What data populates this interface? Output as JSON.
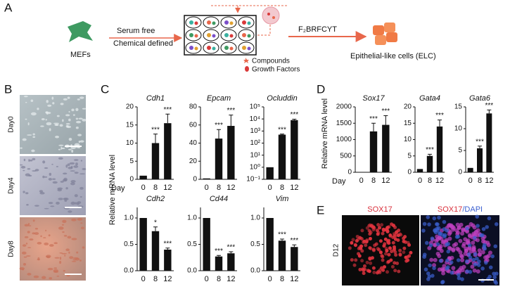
{
  "panel_a": {
    "label": "A",
    "source": "MEFs",
    "step1": [
      "Serum free",
      "Chemical defined"
    ],
    "step2": "F₂BRFCYT",
    "target": "Epithelial-like cells (ELC)",
    "legend": [
      "Compounds",
      "Growth Factors"
    ]
  },
  "panel_b": {
    "label": "B",
    "rows": [
      "Day0",
      "Day4",
      "Day8"
    ]
  },
  "panel_c": {
    "label": "C",
    "y_label": "Relative mRNA level",
    "day_label": "Day",
    "charts": [
      {
        "type": "bar",
        "title": "Cdh1",
        "categories": [
          "0",
          "8",
          "12"
        ],
        "values": [
          1,
          10,
          15.5
        ],
        "errors": [
          0,
          2.5,
          2.5
        ],
        "sig_labels": [
          null,
          "***",
          "***"
        ],
        "ylim": [
          0,
          20
        ],
        "yticks": [
          0,
          5,
          10,
          15,
          20
        ]
      },
      {
        "type": "bar",
        "title": "Epcam",
        "categories": [
          "0",
          "8",
          "12"
        ],
        "values": [
          1,
          45,
          59
        ],
        "errors": [
          0,
          10,
          12
        ],
        "sig_labels": [
          null,
          "***",
          "***"
        ],
        "ylim": [
          0,
          80
        ],
        "yticks": [
          0,
          20,
          40,
          60,
          80
        ]
      },
      {
        "type": "bar",
        "title": "Ocluddin",
        "log_scale": true,
        "categories": [
          "0",
          "8",
          "12"
        ],
        "values": [
          1,
          500,
          8000
        ],
        "errors": [
          0,
          60,
          1500
        ],
        "sig_labels": [
          null,
          "***",
          "***"
        ],
        "ylim": [
          0.1,
          100000
        ],
        "yticks": [
          {
            "value": 0.1,
            "label": "10⁻¹"
          },
          {
            "value": 1,
            "label": "10⁰"
          },
          {
            "value": 10,
            "label": "10¹"
          },
          {
            "value": 100,
            "label": "10²"
          },
          {
            "value": 1000,
            "label": "10³"
          },
          {
            "value": 10000,
            "label": "10⁴"
          },
          {
            "value": 100000,
            "label": "10⁵"
          }
        ]
      },
      {
        "type": "bar",
        "title": "Cdh2",
        "categories": [
          "0",
          "8",
          "12"
        ],
        "values": [
          1,
          0.75,
          0.4
        ],
        "errors": [
          0,
          0.08,
          0.03
        ],
        "sig_labels": [
          null,
          "*",
          "***"
        ],
        "ylim": [
          0,
          1.2
        ],
        "yticks": [
          {
            "value": 0,
            "label": "0.0"
          },
          {
            "value": 0.5,
            "label": "0.5"
          },
          {
            "value": 1,
            "label": "1.0"
          }
        ]
      },
      {
        "type": "bar",
        "title": "Cd44",
        "categories": [
          "0",
          "8",
          "12"
        ],
        "values": [
          1,
          0.27,
          0.33
        ],
        "errors": [
          0,
          0.02,
          0.03
        ],
        "sig_labels": [
          null,
          "***",
          "***"
        ],
        "ylim": [
          0,
          1.2
        ],
        "yticks": [
          {
            "value": 0,
            "label": "0.0"
          },
          {
            "value": 0.5,
            "label": "0.5"
          },
          {
            "value": 1,
            "label": "1.0"
          }
        ]
      },
      {
        "type": "bar",
        "title": "Vim",
        "categories": [
          "0",
          "8",
          "12"
        ],
        "values": [
          1,
          0.57,
          0.45
        ],
        "errors": [
          0,
          0.03,
          0.04
        ],
        "sig_labels": [
          null,
          "***",
          "***"
        ],
        "ylim": [
          0,
          1.2
        ],
        "yticks": [
          {
            "value": 0,
            "label": "0.0"
          },
          {
            "value": 0.5,
            "label": "0.5"
          },
          {
            "value": 1,
            "label": "1.0"
          }
        ]
      }
    ]
  },
  "panel_d": {
    "label": "D",
    "y_label": "Relative mRNA level",
    "day_label": "Day",
    "charts": [
      {
        "type": "bar",
        "title": "Sox17",
        "categories": [
          "0",
          "8",
          "12"
        ],
        "values": [
          1,
          1250,
          1450
        ],
        "errors": [
          0,
          250,
          280
        ],
        "sig_labels": [
          null,
          "***",
          "***"
        ],
        "ylim": [
          0,
          2000
        ],
        "yticks": [
          0,
          500,
          1000,
          1500,
          2000
        ]
      },
      {
        "type": "bar",
        "title": "Gata4",
        "categories": [
          "0",
          "8",
          "12"
        ],
        "values": [
          1,
          5,
          14
        ],
        "errors": [
          0,
          0.5,
          2
        ],
        "sig_labels": [
          null,
          "***",
          "***"
        ],
        "ylim": [
          0,
          20
        ],
        "yticks": [
          0,
          5,
          10,
          15,
          20
        ]
      },
      {
        "type": "bar",
        "title": "Gata6",
        "categories": [
          "0",
          "8",
          "12"
        ],
        "values": [
          1,
          5.5,
          13.5
        ],
        "errors": [
          0,
          0.5,
          0.8
        ],
        "sig_labels": [
          null,
          "***",
          "***"
        ],
        "ylim": [
          0,
          15
        ],
        "yticks": [
          0,
          5,
          10,
          15
        ]
      }
    ]
  },
  "panel_e": {
    "label": "E",
    "title_left": "SOX17",
    "title_right": [
      "SOX17",
      "/DAPI"
    ],
    "row": "D12"
  }
}
